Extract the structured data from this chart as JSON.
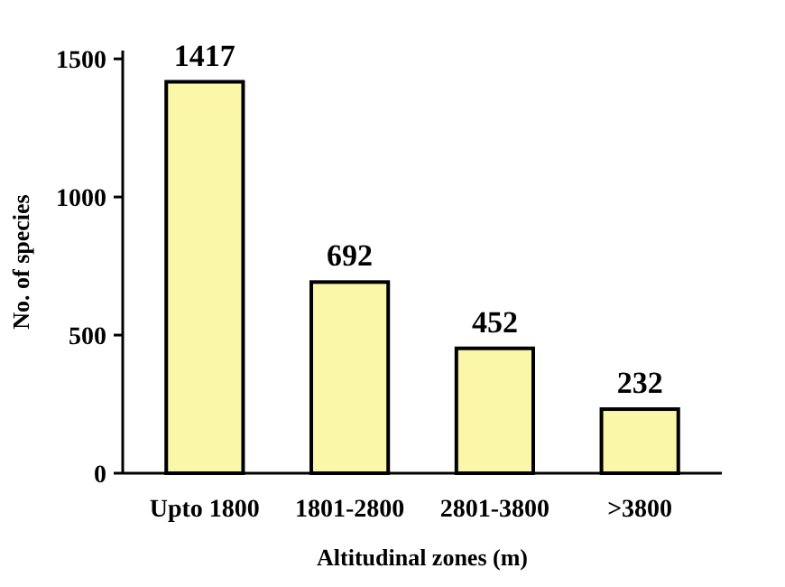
{
  "chart_data": {
    "type": "bar",
    "xlabel": "Altitudinal zones (m)",
    "ylabel": "No. of species",
    "categories": [
      "Upto 1800",
      "1801-2800",
      "2801-3800",
      ">3800"
    ],
    "values": [
      1417,
      692,
      452,
      232
    ],
    "color": "#fbf7a8",
    "ylim": [
      0,
      1530
    ],
    "yticks": [
      0,
      500,
      1000,
      1500
    ],
    "data_labels": true
  }
}
